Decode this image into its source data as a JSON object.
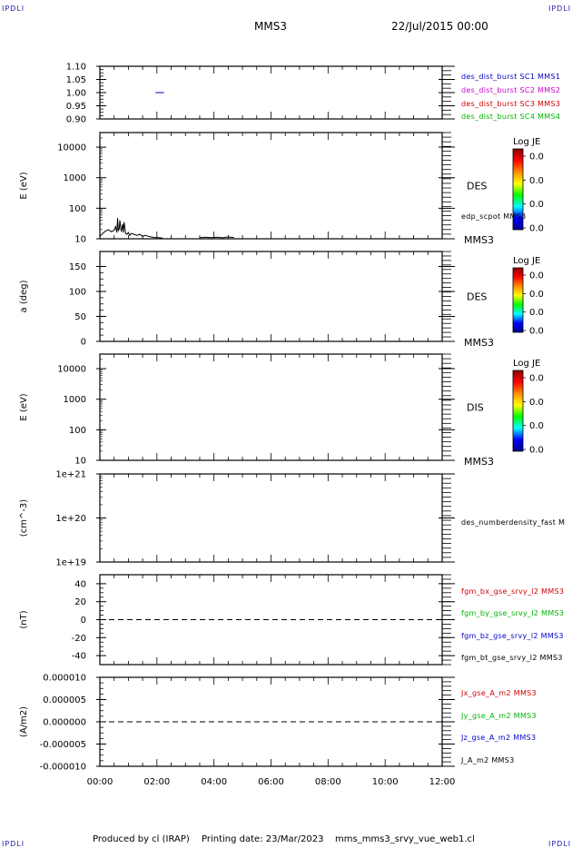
{
  "header": {
    "corner_label": "IPDLI",
    "spacecraft": "MMS3",
    "datetime": "22/Jul/2015 00:00"
  },
  "footer": {
    "produced_by": "Produced by cl (IRAP)",
    "printing_date": "Printing date: 23/Mar/2023",
    "script_name": "mms_mms3_srvy_vue_web1.cl"
  },
  "colors": {
    "blue": "#0000c8",
    "magenta": "#c800c8",
    "red": "#d20000",
    "green": "#00b400",
    "black": "#000000"
  },
  "colorbar_gradient": [
    "#8b0000",
    "#ff0000",
    "#ff8c00",
    "#ffff00",
    "#00ff00",
    "#00ffff",
    "#0000ff",
    "#00008b"
  ],
  "chart_data": [
    {
      "type": "line",
      "id": "p1",
      "ylim": [
        0.9,
        1.1
      ],
      "ytick_values": [
        0.9,
        0.95,
        1.0,
        1.05,
        1.1
      ],
      "ytick_labels": [
        "0.90",
        "0.95",
        "1.00",
        "1.05",
        "1.10"
      ],
      "series": [
        {
          "name": "des_dist_burst SC1 MMS1",
          "color": "blue",
          "x": [
            1.95,
            2.25
          ],
          "y": [
            1.0,
            1.0
          ]
        },
        {
          "name": "des_dist_burst SC2 MMS2",
          "color": "magenta",
          "x": [],
          "y": []
        },
        {
          "name": "des_dist_burst SC3 MMS3",
          "color": "red",
          "x": [],
          "y": []
        },
        {
          "name": "des_dist_burst SC4 MMS4",
          "color": "green",
          "x": [],
          "y": []
        }
      ]
    },
    {
      "type": "line",
      "id": "p2",
      "ylabel": "E (eV)",
      "yscale": "log",
      "ylim": [
        10,
        30000
      ],
      "ytick_values": [
        10,
        100,
        1000,
        10000
      ],
      "ytick_labels": [
        "10",
        "100",
        "1000",
        "10000"
      ],
      "species": "DES",
      "craft": "MMS3",
      "colorbar": {
        "title": "Log JE",
        "labels": [
          "0.0",
          "0.0",
          "0.0",
          "0.0"
        ]
      },
      "series": [
        {
          "name": "edp_scpot MMS3",
          "color": "black",
          "x": [
            0.0,
            0.1,
            0.2,
            0.3,
            0.4,
            0.5,
            0.55,
            0.6,
            0.62,
            0.65,
            0.68,
            0.7,
            0.75,
            0.8,
            0.82,
            0.85,
            0.9,
            0.95,
            1.0,
            1.05,
            1.1,
            1.2,
            1.3,
            1.4,
            1.5,
            1.6,
            1.7,
            1.8,
            1.9,
            2.0,
            2.1,
            2.2
          ],
          "y": [
            12,
            15,
            18,
            20,
            17,
            19,
            25,
            16,
            48,
            18,
            22,
            40,
            17,
            30,
            16,
            35,
            15,
            14,
            16,
            13,
            15,
            14,
            13,
            14,
            12,
            13,
            12,
            11.5,
            11,
            11,
            10.8,
            10.5
          ]
        },
        {
          "name": "edp_scpot MMS3",
          "color": "black",
          "x": [
            3.5,
            3.7,
            3.9,
            4.1,
            4.3,
            4.5,
            4.7
          ],
          "y": [
            10.8,
            11.2,
            10.9,
            11.3,
            10.8,
            11.5,
            11.0
          ]
        }
      ]
    },
    {
      "type": "heatmap",
      "id": "p3",
      "ylabel": "a (deg)",
      "ylim": [
        0,
        180
      ],
      "ytick_values": [
        0,
        50,
        100,
        150
      ],
      "ytick_labels": [
        "0",
        "50",
        "100",
        "150"
      ],
      "species": "DES",
      "craft": "MMS3",
      "colorbar": {
        "title": "Log JE",
        "labels": [
          "0.0",
          "0.0",
          "0.0",
          "0.0"
        ]
      }
    },
    {
      "type": "heatmap",
      "id": "p4",
      "ylabel": "E (eV)",
      "yscale": "log",
      "ylim": [
        10,
        30000
      ],
      "ytick_values": [
        10,
        100,
        1000,
        10000
      ],
      "ytick_labels": [
        "10",
        "100",
        "1000",
        "10000"
      ],
      "species": "DIS",
      "craft": "MMS3",
      "colorbar": {
        "title": "Log JE",
        "labels": [
          "0.0",
          "0.0",
          "0.0",
          "0.0"
        ]
      }
    },
    {
      "type": "line",
      "id": "p5",
      "ylabel": "(cm^-3)",
      "yscale": "log",
      "ylim": [
        1e+19,
        1e+21
      ],
      "ytick_values": [
        1e+19,
        1e+20,
        1e+21
      ],
      "ytick_labels": [
        "1e+19",
        "1e+20",
        "1e+21"
      ],
      "series": [
        {
          "name": "des_numberdensity_fast M",
          "color": "black",
          "x": [],
          "y": []
        }
      ]
    },
    {
      "type": "line",
      "id": "p6",
      "ylabel": "(nT)",
      "ylim": [
        -50,
        50
      ],
      "ytick_values": [
        -40,
        -20,
        0,
        20,
        40
      ],
      "ytick_labels": [
        "-40",
        "-20",
        "0",
        "20",
        "40"
      ],
      "zero_line": true,
      "series": [
        {
          "name": "fgm_bx_gse_srvy_l2 MMS3",
          "color": "red",
          "x": [],
          "y": []
        },
        {
          "name": "fgm_by_gse_srvy_l2 MMS3",
          "color": "green",
          "x": [],
          "y": []
        },
        {
          "name": "fgm_bz_gse_srvy_l2 MMS3",
          "color": "blue",
          "x": [],
          "y": []
        },
        {
          "name": "fgm_bt_gse_srvy_l2 MMS3",
          "color": "black",
          "x": [],
          "y": []
        }
      ]
    },
    {
      "type": "line",
      "id": "p7",
      "ylabel": "(A/m2)",
      "ylim": [
        -1e-05,
        1e-05
      ],
      "ytick_values": [
        -1e-05,
        -5e-06,
        0,
        5e-06,
        1e-05
      ],
      "ytick_labels": [
        "-0.000010",
        "-0.000005",
        "0.000000",
        "0.000005",
        "0.000010"
      ],
      "zero_line": true,
      "xlim": [
        0,
        12
      ],
      "xtick_values": [
        0,
        2,
        4,
        6,
        8,
        10,
        12
      ],
      "xtick_labels": [
        "00:00",
        "02:00",
        "04:00",
        "06:00",
        "08:00",
        "10:00",
        "12:00"
      ],
      "series": [
        {
          "name": "Jx_gse_A_m2 MMS3",
          "color": "red",
          "x": [],
          "y": []
        },
        {
          "name": "Jy_gse_A_m2 MMS3",
          "color": "green",
          "x": [],
          "y": []
        },
        {
          "name": "Jz_gse_A_m2 MMS3",
          "color": "blue",
          "x": [],
          "y": []
        },
        {
          "name": "J_A_m2 MMS3",
          "color": "black",
          "x": [],
          "y": []
        }
      ]
    }
  ]
}
